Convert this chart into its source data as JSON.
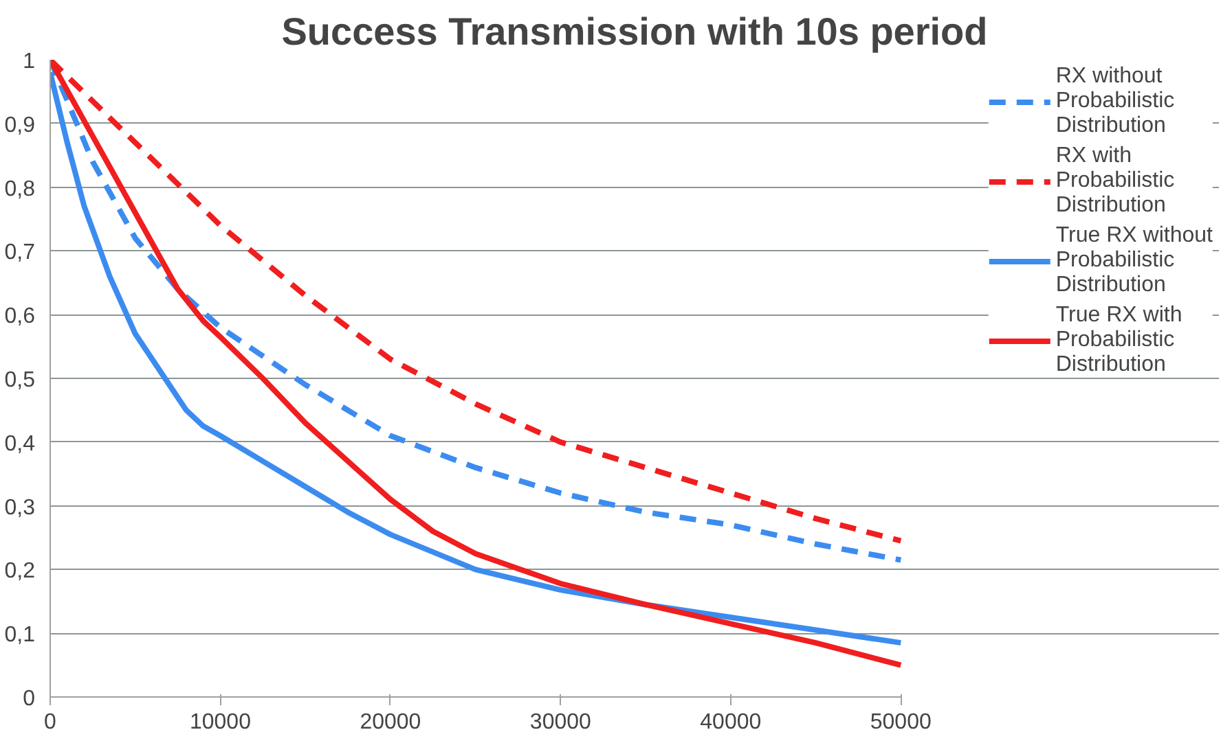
{
  "chart_data": {
    "type": "line",
    "title": "Success Transmission with 10s period",
    "series": [
      {
        "name": "RX without Probabilistic Distribution",
        "color": "#3c8cf0",
        "line_style": "dashed",
        "x": [
          0,
          2500,
          5000,
          7500,
          10000,
          15000,
          20000,
          25000,
          30000,
          35000,
          40000,
          45000,
          50000
        ],
        "values": [
          1,
          0.84,
          0.72,
          0.64,
          0.58,
          0.49,
          0.41,
          0.36,
          0.32,
          0.29,
          0.27,
          0.24,
          0.215
        ]
      },
      {
        "name": "RX with Probabilistic Distribution",
        "color": "#f01e1e",
        "line_style": "dashed",
        "x": [
          0,
          5000,
          10000,
          15000,
          20000,
          25000,
          30000,
          35000,
          40000,
          45000,
          50000
        ],
        "values": [
          1,
          0.87,
          0.74,
          0.63,
          0.53,
          0.46,
          0.4,
          0.36,
          0.32,
          0.28,
          0.245
        ]
      },
      {
        "name": "True RX without Probabilistic Distribution",
        "color": "#3c8cf0",
        "line_style": "solid",
        "x": [
          0,
          1000,
          2000,
          3500,
          5000,
          6500,
          8000,
          9000,
          10000,
          12500,
          15000,
          17500,
          20000,
          25000,
          30000,
          35000,
          40000,
          45000,
          50000
        ],
        "values": [
          0.98,
          0.87,
          0.77,
          0.66,
          0.57,
          0.51,
          0.45,
          0.425,
          0.41,
          0.37,
          0.33,
          0.29,
          0.255,
          0.2,
          0.168,
          0.145,
          0.125,
          0.105,
          0.085
        ]
      },
      {
        "name": "True RX with Probabilistic Distribution",
        "color": "#f01e1e",
        "line_style": "solid",
        "x": [
          0,
          2500,
          5000,
          7500,
          9000,
          10000,
          12500,
          15000,
          17500,
          20000,
          22500,
          25000,
          30000,
          35000,
          40000,
          45000,
          50000
        ],
        "values": [
          1,
          0.88,
          0.76,
          0.64,
          0.59,
          0.565,
          0.5,
          0.43,
          0.37,
          0.31,
          0.26,
          0.225,
          0.178,
          0.145,
          0.115,
          0.085,
          0.05
        ]
      }
    ],
    "xlim": [
      0,
      50000
    ],
    "xticks": [
      0,
      10000,
      20000,
      30000,
      40000,
      50000
    ],
    "ylim": [
      0,
      1
    ],
    "yticks": [
      0,
      {
        "value": 0.1,
        "label": "0,1"
      },
      {
        "value": 0.2,
        "label": "0,2"
      },
      {
        "value": 0.3,
        "label": "0,3"
      },
      {
        "value": 0.4,
        "label": "0,4"
      },
      {
        "value": 0.5,
        "label": "0,5"
      },
      {
        "value": 0.6,
        "label": "0,6"
      },
      {
        "value": 0.7,
        "label": "0,7"
      },
      {
        "value": 0.8,
        "label": "0,8"
      },
      {
        "value": 0.9,
        "label": "0,9"
      },
      1
    ],
    "grid": "y",
    "legend": "right",
    "marker": "none"
  }
}
